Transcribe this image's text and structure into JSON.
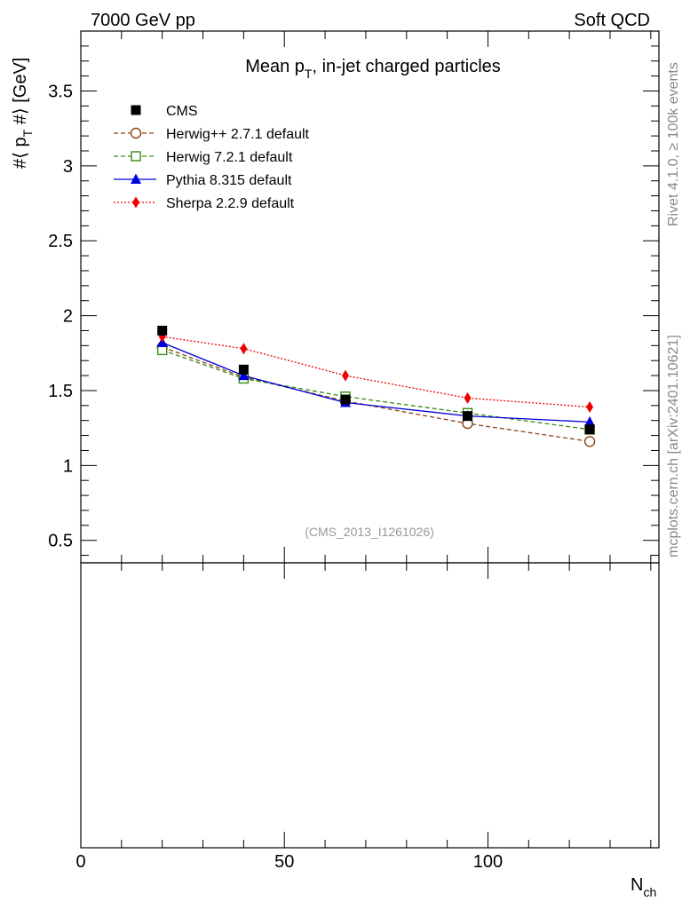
{
  "header": {
    "energy_label": "7000 GeV pp",
    "category_label": "Soft QCD"
  },
  "side_labels": {
    "rivet": "Rivet 4.1.0, ≥ 100k events",
    "mcplots": "mcplots.cern.ch [arXiv:2401.10621]"
  },
  "chart_data": {
    "type": "line",
    "title": "Mean p_T, in-jet charged particles",
    "title_main": "Mean p",
    "title_sub": "T",
    "title_rest": ", in-jet charged particles",
    "ylabel": "#⟨ p_T #⟩ [GeV]",
    "ylabel_a": "#⟨ p",
    "ylabel_sub": "T",
    "ylabel_b": " #⟩ [GeV]",
    "xlabel": "N_ch",
    "xlabel_main": "N",
    "xlabel_sub": "ch",
    "analysis_id": "(CMS_2013_I1261026)",
    "xlim": [
      0,
      142
    ],
    "ylim": [
      0.35,
      3.9
    ],
    "y_ticks": [
      0.5,
      1,
      1.5,
      2,
      2.5,
      3,
      3.5
    ],
    "y_tick_labels": [
      "0.5",
      "1",
      "1.5",
      "2",
      "2.5",
      "3",
      "3.5"
    ],
    "x_ticks": [
      0,
      50,
      100
    ],
    "x_tick_labels": [
      "0",
      "50",
      "100"
    ],
    "legend_position": "top-left",
    "series": [
      {
        "name": "CMS",
        "color": "#000000",
        "marker": "square-filled",
        "line": "none",
        "x": [
          20,
          40,
          65,
          95,
          125
        ],
        "y": [
          1.9,
          1.64,
          1.44,
          1.33,
          1.24
        ]
      },
      {
        "name": "Herwig++ 2.7.1 default",
        "color": "#8b4513",
        "marker": "circle-open",
        "line": "dashed",
        "x": [
          20,
          40,
          65,
          95,
          125
        ],
        "y": [
          1.79,
          1.59,
          1.43,
          1.28,
          1.16
        ]
      },
      {
        "name": "Herwig 7.2.1 default",
        "color": "#3a8a14",
        "marker": "square-open",
        "line": "dashed",
        "x": [
          20,
          40,
          65,
          95,
          125
        ],
        "y": [
          1.77,
          1.58,
          1.46,
          1.35,
          1.24
        ]
      },
      {
        "name": "Pythia 8.315 default",
        "color": "#0000dd",
        "marker": "triangle-filled",
        "line": "solid",
        "x": [
          20,
          40,
          65,
          95,
          125
        ],
        "y": [
          1.82,
          1.6,
          1.42,
          1.33,
          1.29
        ]
      },
      {
        "name": "Sherpa 2.2.9 default",
        "color": "#ee0000",
        "marker": "diamond-filled",
        "line": "dotted",
        "x": [
          20,
          40,
          65,
          95,
          125
        ],
        "y": [
          1.86,
          1.78,
          1.6,
          1.45,
          1.39
        ]
      }
    ]
  }
}
